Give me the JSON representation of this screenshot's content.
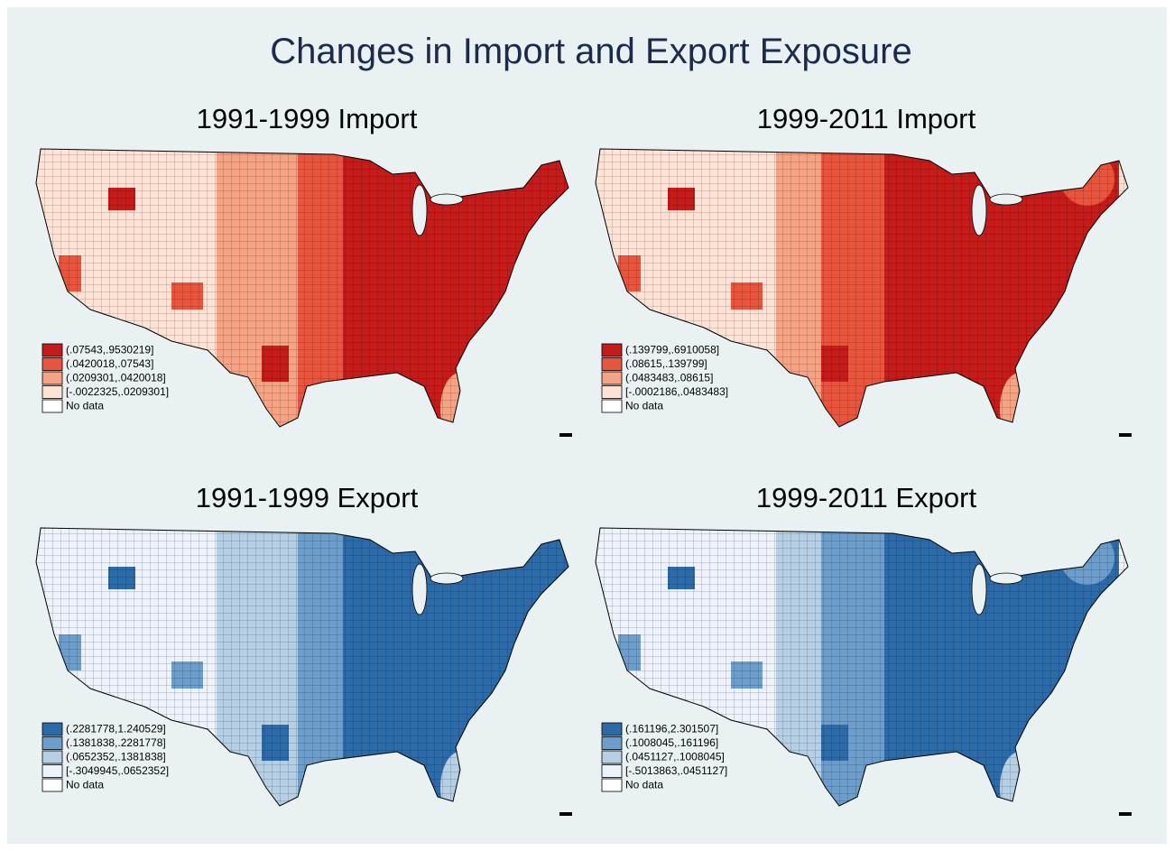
{
  "title": "Changes in Import and Export Exposure",
  "panels": [
    {
      "title": "1991-1999 Import",
      "legend": [
        {
          "label": "(.07543,.9530219]",
          "color": "#c41b1b"
        },
        {
          "label": "(.0420018,.07543]",
          "color": "#e8553e"
        },
        {
          "label": "(.0209301,.0420018]",
          "color": "#f4a385"
        },
        {
          "label": "[-.0022325,.0209301]",
          "color": "#fde2d5"
        },
        {
          "label": "No data",
          "color": "#ffffff"
        }
      ]
    },
    {
      "title": "1999-2011 Import",
      "legend": [
        {
          "label": "(.139799,.6910058]",
          "color": "#c41b1b"
        },
        {
          "label": "(.08615,.139799]",
          "color": "#e8553e"
        },
        {
          "label": "(.0483483,.08615]",
          "color": "#f4a385"
        },
        {
          "label": "[-.0002186,.0483483]",
          "color": "#fde2d5"
        },
        {
          "label": "No data",
          "color": "#ffffff"
        }
      ]
    },
    {
      "title": "1991-1999 Export",
      "legend": [
        {
          "label": "(.2281778,1.240529]",
          "color": "#2c6aa8"
        },
        {
          "label": "(.1381838,.2281778]",
          "color": "#6d9ecb"
        },
        {
          "label": "(.0652352,.1381838]",
          "color": "#b6cfe4"
        },
        {
          "label": "[-.3049945,.0652352]",
          "color": "#eef2fb"
        },
        {
          "label": "No data",
          "color": "#ffffff"
        }
      ]
    },
    {
      "title": "1999-2011 Export",
      "legend": [
        {
          "label": "(.161196,2.301507]",
          "color": "#2c6aa8"
        },
        {
          "label": "(.1008045,.161196]",
          "color": "#6d9ecb"
        },
        {
          "label": "(.0451127,.1008045]",
          "color": "#b6cfe4"
        },
        {
          "label": "[-.5013863,.0451127]",
          "color": "#eef2fb"
        },
        {
          "label": "No data",
          "color": "#ffffff"
        }
      ]
    }
  ]
}
